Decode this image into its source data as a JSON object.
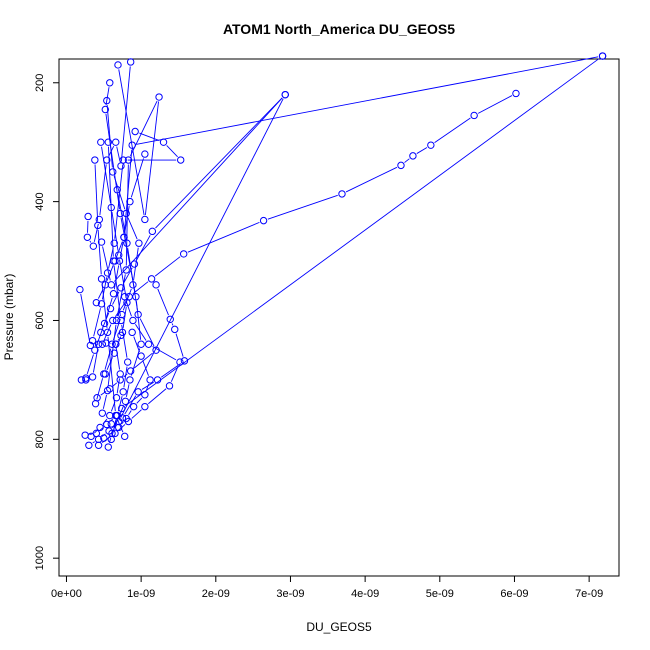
{
  "chart_data": {
    "type": "scatter",
    "title": "ATOM1 North_America DU_GEOS5",
    "xlabel": "DU_GEOS5",
    "ylabel": "Pressure (mbar)",
    "xlim": [
      -1e-10,
      7.4e-09
    ],
    "ylim": [
      1030,
      160
    ],
    "y_axis_reversed": true,
    "grid": false,
    "color": "#0000ff",
    "marker": "open-circle",
    "x_ticks": [
      {
        "value": 0,
        "label": "0e+00"
      },
      {
        "value": 1e-09,
        "label": "1e-09"
      },
      {
        "value": 2e-09,
        "label": "2e-09"
      },
      {
        "value": 3e-09,
        "label": "3e-09"
      },
      {
        "value": 4e-09,
        "label": "4e-09"
      },
      {
        "value": 5e-09,
        "label": "5e-09"
      },
      {
        "value": 6e-09,
        "label": "6e-09"
      },
      {
        "value": 7e-09,
        "label": "7e-09"
      }
    ],
    "y_ticks": [
      {
        "value": 200,
        "label": "200"
      },
      {
        "value": 400,
        "label": "400"
      },
      {
        "value": 600,
        "label": "600"
      },
      {
        "value": 800,
        "label": "800"
      },
      {
        "value": 1000,
        "label": "1000"
      }
    ],
    "series": [
      {
        "x": [
          4.3e-10,
          6.5e-10,
          8.3e-10,
          1.05e-09,
          1.38e-09,
          1.52e-09,
          1.1e-09,
          8.9e-10,
          7.8e-10
        ],
        "y": [
          810,
          790,
          770,
          745,
          710,
          670,
          640,
          600,
          560
        ]
      },
      {
        "x": [
          2e-10,
          2.6e-10,
          3.5e-10,
          4.3e-10,
          5.3e-10,
          6.6e-10,
          7.3e-10
        ],
        "y": [
          700,
          700,
          695,
          640,
          638,
          640,
          625
        ]
      },
      {
        "x": [
          1.8e-10,
          3.2e-10,
          4.8e-10,
          6.2e-10,
          8.4e-10,
          1.14e-09,
          1.57e-09,
          2.64e-09,
          3.69e-09,
          4.48e-09,
          4.64e-09,
          4.88e-09,
          5.46e-09,
          6.02e-09
        ],
        "y": [
          548,
          642,
          640,
          600,
          560,
          530,
          488,
          432,
          387,
          339,
          323,
          305,
          255,
          218
        ]
      },
      {
        "x": [
          2.5e-10,
          4e-10,
          5.4e-10,
          6.7e-10,
          7.4e-10,
          7.18e-09
        ],
        "y": [
          793,
          790,
          775,
          760,
          748,
          155
        ]
      },
      {
        "x": [
          3e-10,
          4.3e-10,
          5.7e-10,
          7e-10,
          2.93e-09,
          6e-10,
          4.7e-10
        ],
        "y": [
          810,
          800,
          786,
          770,
          220,
          540,
          468
        ]
      },
      {
        "x": [
          4.1e-10,
          5.8e-10,
          7.2e-10,
          8.6e-10,
          1.2e-09,
          9.6e-10,
          8.1e-10,
          6.8e-10
        ],
        "y": [
          730,
          715,
          700,
          685,
          650,
          590,
          470,
          380
        ]
      },
      {
        "x": [
          6e-10,
          7.5e-10,
          9.6e-10,
          1.22e-09,
          1.58e-09,
          1.45e-09,
          1.39e-09,
          1.2e-09
        ],
        "y": [
          774,
          764,
          720,
          700,
          668,
          615,
          598,
          540
        ]
      },
      {
        "x": [
          4.8e-10,
          5.5e-10,
          6.7e-10,
          8e-10,
          8.3e-10,
          1.24e-09,
          1.05e-09,
          6.9e-10
        ],
        "y": [
          756,
          718,
          600,
          515,
          330,
          224,
          430,
          170
        ]
      },
      {
        "x": [
          3.5e-10,
          4.7e-10,
          5.5e-10,
          6.4e-10,
          7.6e-10,
          1.53e-09,
          1.3e-09,
          9.2e-10
        ],
        "y": [
          634,
          572,
          520,
          470,
          330,
          330,
          300,
          282
        ]
      },
      {
        "x": [
          2.9e-10,
          2.8e-10,
          3.6e-10,
          4.4e-10,
          5.4e-10,
          6.6e-10,
          7.3e-10,
          8.6e-10
        ],
        "y": [
          425,
          460,
          475,
          430,
          330,
          300,
          340,
          165
        ]
      },
      {
        "x": [
          7.8e-10,
          6.6e-10,
          5.5e-10,
          4.7e-10,
          4.2e-10,
          3.8e-10
        ],
        "y": [
          795,
          760,
          620,
          530,
          440,
          330
        ]
      },
      {
        "x": [
          5.6e-10,
          6.1e-10,
          7.9e-10,
          8.5e-10,
          1e-09,
          9.3e-10,
          7.2e-10,
          5.2e-10,
          5.8e-10
        ],
        "y": [
          813,
          790,
          736,
          700,
          640,
          560,
          420,
          245,
          200
        ]
      },
      {
        "x": [
          5e-10,
          6e-10,
          6.8e-10,
          7.6e-10,
          8.2e-10,
          7.3e-10,
          6.3e-10,
          5.6e-10
        ],
        "y": [
          798,
          800,
          760,
          720,
          670,
          600,
          500,
          300
        ]
      },
      {
        "x": [
          3.9e-10,
          5e-10,
          6.1e-10,
          7.4e-10,
          8.9e-10,
          9.7e-10,
          8e-10,
          6.2e-10,
          5.4e-10
        ],
        "y": [
          740,
          690,
          640,
          590,
          540,
          470,
          420,
          350,
          230
        ]
      },
      {
        "x": [
          2.6e-10,
          3.8e-10,
          5.1e-10,
          6.3e-10,
          7.1e-10,
          7.7e-10,
          8.5e-10,
          1.05e-09
        ],
        "y": [
          697,
          650,
          605,
          555,
          500,
          460,
          400,
          320
        ]
      },
      {
        "x": [
          4.6e-10,
          5.9e-10,
          7.3e-10,
          9.1e-10,
          1.15e-09,
          2.93e-09
        ],
        "y": [
          620,
          580,
          545,
          505,
          450,
          220
        ]
      },
      {
        "x": [
          5.2e-10,
          6.4e-10,
          7.5e-10,
          8.1e-10,
          7e-10,
          6e-10,
          4.6e-10
        ],
        "y": [
          690,
          655,
          620,
          570,
          490,
          410,
          300
        ]
      },
      {
        "x": [
          3.3e-10,
          4.5e-10,
          5.8e-10,
          6.7e-10,
          7.2e-10,
          6.6e-10
        ],
        "y": [
          795,
          780,
          760,
          730,
          690,
          640
        ]
      },
      {
        "x": [
          7e-10,
          8e-10,
          9e-10,
          1.05e-09,
          1.12e-09,
          1e-09,
          8.8e-10
        ],
        "y": [
          780,
          765,
          745,
          725,
          700,
          660,
          620
        ]
      },
      {
        "x": [
          4e-10,
          5.2e-10,
          6.5e-10,
          7.7e-10,
          8.8e-10,
          7.18e-09
        ],
        "y": [
          570,
          540,
          500,
          460,
          305,
          155
        ]
      }
    ]
  }
}
